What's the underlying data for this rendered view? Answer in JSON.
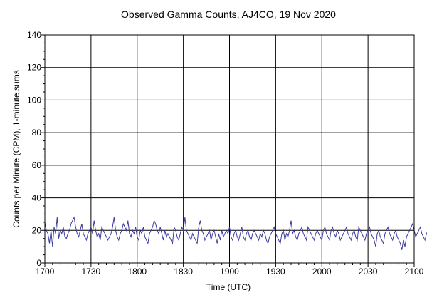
{
  "chart_data": {
    "type": "line",
    "title": "Observed Gamma Counts, AJ4CO, 19 Nov 2020",
    "xlabel": "Time (UTC)",
    "ylabel": "Counts per Minute (CPM), 1-minute sums",
    "ylim": [
      0,
      140
    ],
    "xlim": [
      "1700",
      "2100"
    ],
    "x_ticks": [
      "1700",
      "1730",
      "1800",
      "1830",
      "1900",
      "1930",
      "2000",
      "2030",
      "2100"
    ],
    "y_ticks": [
      0,
      20,
      40,
      60,
      80,
      100,
      120,
      140
    ],
    "grid": true,
    "legend": "none",
    "line_color": "#3a3aa0",
    "sample_interval_minutes": 1,
    "series": [
      {
        "values": [
          25,
          20,
          18,
          12,
          20,
          10,
          22,
          18,
          28,
          15,
          20,
          18,
          22,
          16,
          15,
          18,
          20,
          24,
          26,
          28,
          22,
          18,
          16,
          20,
          24,
          18,
          16,
          14,
          18,
          20,
          22,
          18,
          26,
          20,
          16,
          18,
          14,
          22,
          20,
          18,
          16,
          14,
          16,
          18,
          22,
          28,
          20,
          16,
          14,
          18,
          20,
          24,
          22,
          20,
          26,
          18,
          16,
          20,
          18,
          22,
          16,
          14,
          20,
          18,
          22,
          16,
          14,
          12,
          18,
          20,
          22,
          26,
          24,
          20,
          18,
          22,
          18,
          14,
          20,
          16,
          18,
          16,
          14,
          12,
          22,
          20,
          16,
          14,
          18,
          22,
          20,
          28,
          20,
          18,
          16,
          14,
          18,
          16,
          14,
          12,
          22,
          26,
          20,
          18,
          14,
          16,
          18,
          20,
          14,
          18,
          20,
          16,
          12,
          18,
          14,
          20,
          16,
          18,
          20,
          18,
          22,
          16,
          14,
          18,
          20,
          16,
          14,
          18,
          22,
          16,
          14,
          18,
          20,
          16,
          14,
          18,
          20,
          18,
          16,
          14,
          18,
          16,
          20,
          18,
          14,
          12,
          16,
          18,
          20,
          22,
          18,
          16,
          14,
          12,
          18,
          20,
          14,
          18,
          16,
          20,
          26,
          18,
          20,
          16,
          14,
          18,
          20,
          22,
          18,
          16,
          14,
          22,
          20,
          18,
          16,
          14,
          18,
          20,
          18,
          16,
          14,
          20,
          22,
          18,
          16,
          14,
          20,
          22,
          18,
          16,
          20,
          18,
          14,
          16,
          18,
          20,
          22,
          18,
          16,
          14,
          18,
          20,
          16,
          14,
          22,
          20,
          18,
          16,
          14,
          18,
          20,
          22,
          18,
          16,
          14,
          10,
          18,
          20,
          16,
          14,
          12,
          18,
          20,
          22,
          18,
          16,
          14,
          18,
          20,
          16,
          14,
          12,
          8,
          14,
          10,
          16,
          18,
          20,
          22,
          24,
          20,
          16,
          18,
          20,
          22,
          18,
          16,
          14,
          18,
          20,
          24,
          18,
          16,
          20,
          22,
          18,
          16,
          14,
          20,
          22,
          18,
          16,
          14,
          20,
          22,
          18,
          16,
          14,
          12,
          20,
          18
        ]
      }
    ]
  }
}
